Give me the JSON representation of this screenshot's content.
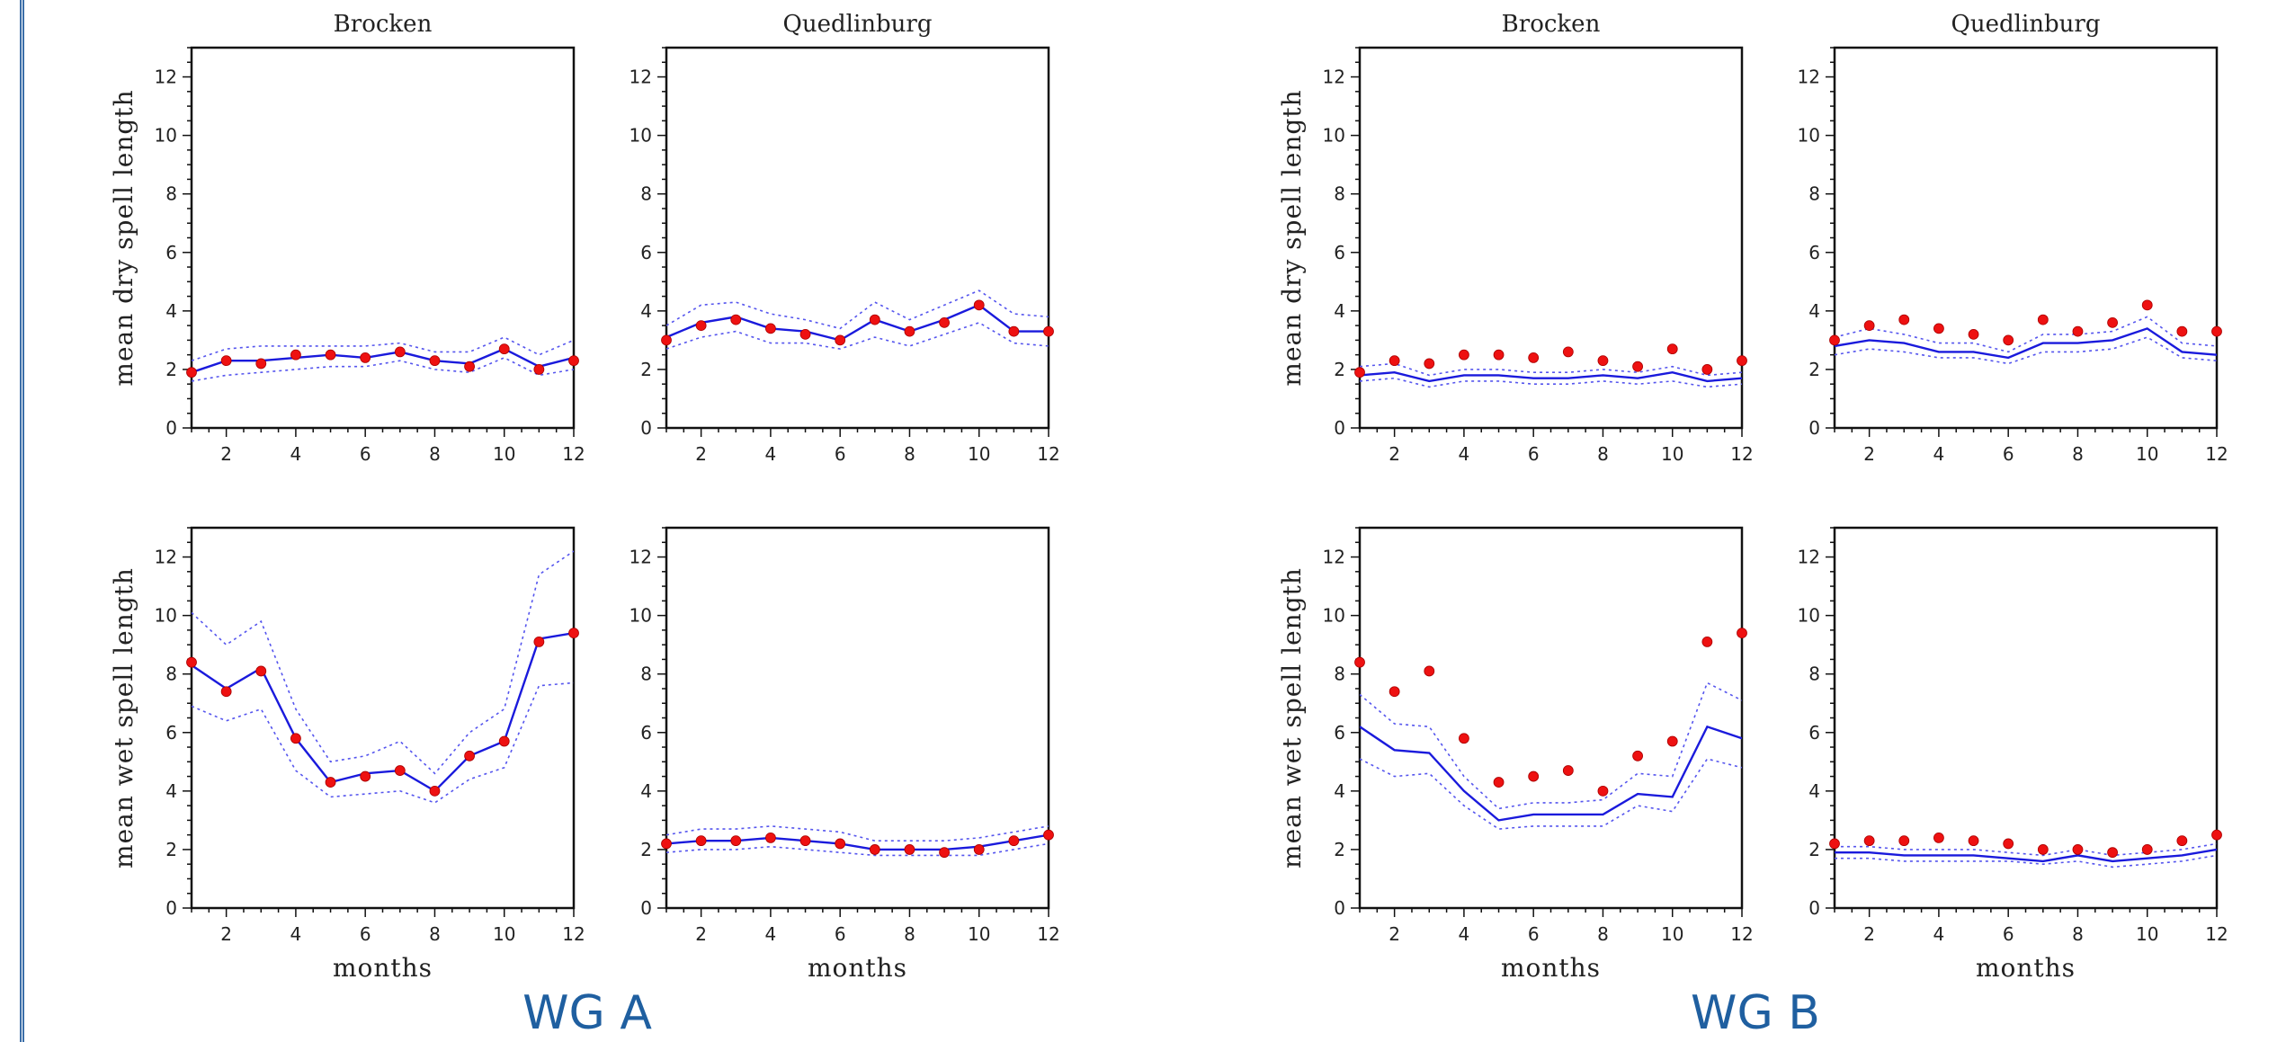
{
  "colors": {
    "model_line": "#1a1adc",
    "model_band": "#5555ee",
    "observed_points": "#ee1111",
    "axes": "#111111",
    "group_label": "#1f5fa0",
    "side_rule": "#3b6ea8"
  },
  "groups": [
    {
      "label": "WG A"
    },
    {
      "label": "WG B"
    }
  ],
  "panel_titles": [
    "Brocken",
    "Quedlinburg",
    "Brocken",
    "Quedlinburg"
  ],
  "chart_data": [
    {
      "type": "line",
      "group": "WG A",
      "title": "Brocken",
      "ylabel": "mean dry spell length",
      "xlabel": "",
      "xlim": [
        1,
        12
      ],
      "ylim": [
        0,
        13
      ],
      "xticks": [
        2,
        4,
        6,
        8,
        10,
        12
      ],
      "yticks": [
        0,
        2,
        4,
        6,
        8,
        10,
        12
      ],
      "x": [
        1,
        2,
        3,
        4,
        5,
        6,
        7,
        8,
        9,
        10,
        11,
        12
      ],
      "series": [
        {
          "role": "simulated mean",
          "style": "solid",
          "values": [
            1.9,
            2.3,
            2.3,
            2.4,
            2.5,
            2.4,
            2.6,
            2.3,
            2.2,
            2.7,
            2.1,
            2.4
          ]
        },
        {
          "role": "upper bound",
          "style": "dotted",
          "values": [
            2.3,
            2.7,
            2.8,
            2.8,
            2.8,
            2.8,
            2.9,
            2.6,
            2.6,
            3.1,
            2.5,
            3.0
          ]
        },
        {
          "role": "lower bound",
          "style": "dotted",
          "values": [
            1.6,
            1.8,
            1.9,
            2.0,
            2.1,
            2.1,
            2.3,
            2.0,
            1.9,
            2.4,
            1.8,
            2.0
          ]
        },
        {
          "role": "observed",
          "style": "points",
          "values": [
            1.9,
            2.3,
            2.2,
            2.5,
            2.5,
            2.4,
            2.6,
            2.3,
            2.1,
            2.7,
            2.0,
            2.3
          ]
        }
      ]
    },
    {
      "type": "line",
      "group": "WG A",
      "title": "Quedlinburg",
      "ylabel": "",
      "xlabel": "",
      "xlim": [
        1,
        12
      ],
      "ylim": [
        0,
        13
      ],
      "xticks": [
        2,
        4,
        6,
        8,
        10,
        12
      ],
      "yticks": [
        0,
        2,
        4,
        6,
        8,
        10,
        12
      ],
      "x": [
        1,
        2,
        3,
        4,
        5,
        6,
        7,
        8,
        9,
        10,
        11,
        12
      ],
      "series": [
        {
          "role": "simulated mean",
          "style": "solid",
          "values": [
            3.1,
            3.6,
            3.8,
            3.4,
            3.3,
            3.0,
            3.7,
            3.3,
            3.7,
            4.2,
            3.3,
            3.3
          ]
        },
        {
          "role": "upper bound",
          "style": "dotted",
          "values": [
            3.5,
            4.2,
            4.3,
            3.9,
            3.7,
            3.4,
            4.3,
            3.7,
            4.2,
            4.7,
            3.9,
            3.8
          ]
        },
        {
          "role": "lower bound",
          "style": "dotted",
          "values": [
            2.7,
            3.1,
            3.3,
            2.9,
            2.9,
            2.7,
            3.1,
            2.8,
            3.2,
            3.6,
            2.9,
            2.8
          ]
        },
        {
          "role": "observed",
          "style": "points",
          "values": [
            3.0,
            3.5,
            3.7,
            3.4,
            3.2,
            3.0,
            3.7,
            3.3,
            3.6,
            4.2,
            3.3,
            3.3
          ]
        }
      ]
    },
    {
      "type": "line",
      "group": "WG A",
      "title": "",
      "ylabel": "mean wet spell length",
      "xlabel": "months",
      "xlim": [
        1,
        12
      ],
      "ylim": [
        0,
        13
      ],
      "xticks": [
        2,
        4,
        6,
        8,
        10,
        12
      ],
      "yticks": [
        0,
        2,
        4,
        6,
        8,
        10,
        12
      ],
      "x": [
        1,
        2,
        3,
        4,
        5,
        6,
        7,
        8,
        9,
        10,
        11,
        12
      ],
      "series": [
        {
          "role": "simulated mean",
          "style": "solid",
          "values": [
            8.3,
            7.5,
            8.2,
            5.8,
            4.3,
            4.6,
            4.7,
            4.0,
            5.2,
            5.7,
            9.2,
            9.4
          ]
        },
        {
          "role": "upper bound",
          "style": "dotted",
          "values": [
            10.1,
            9.0,
            9.8,
            6.8,
            5.0,
            5.2,
            5.7,
            4.6,
            6.0,
            6.8,
            11.4,
            12.2
          ]
        },
        {
          "role": "lower bound",
          "style": "dotted",
          "values": [
            6.9,
            6.4,
            6.8,
            4.7,
            3.8,
            3.9,
            4.0,
            3.6,
            4.4,
            4.8,
            7.6,
            7.7
          ]
        },
        {
          "role": "observed",
          "style": "points",
          "values": [
            8.4,
            7.4,
            8.1,
            5.8,
            4.3,
            4.5,
            4.7,
            4.0,
            5.2,
            5.7,
            9.1,
            9.4
          ]
        }
      ]
    },
    {
      "type": "line",
      "group": "WG A",
      "title": "",
      "ylabel": "",
      "xlabel": "months",
      "xlim": [
        1,
        12
      ],
      "ylim": [
        0,
        13
      ],
      "xticks": [
        2,
        4,
        6,
        8,
        10,
        12
      ],
      "yticks": [
        0,
        2,
        4,
        6,
        8,
        10,
        12
      ],
      "x": [
        1,
        2,
        3,
        4,
        5,
        6,
        7,
        8,
        9,
        10,
        11,
        12
      ],
      "series": [
        {
          "role": "simulated mean",
          "style": "solid",
          "values": [
            2.2,
            2.3,
            2.3,
            2.4,
            2.3,
            2.2,
            2.0,
            2.0,
            2.0,
            2.1,
            2.3,
            2.5
          ]
        },
        {
          "role": "upper bound",
          "style": "dotted",
          "values": [
            2.5,
            2.7,
            2.7,
            2.8,
            2.7,
            2.6,
            2.3,
            2.3,
            2.3,
            2.4,
            2.6,
            2.8
          ]
        },
        {
          "role": "lower bound",
          "style": "dotted",
          "values": [
            1.9,
            2.0,
            2.0,
            2.1,
            2.0,
            1.9,
            1.8,
            1.8,
            1.8,
            1.8,
            2.0,
            2.2
          ]
        },
        {
          "role": "observed",
          "style": "points",
          "values": [
            2.2,
            2.3,
            2.3,
            2.4,
            2.3,
            2.2,
            2.0,
            2.0,
            1.9,
            2.0,
            2.3,
            2.5
          ]
        }
      ]
    },
    {
      "type": "line",
      "group": "WG B",
      "title": "Brocken",
      "ylabel": "mean dry spell length",
      "xlabel": "",
      "xlim": [
        1,
        12
      ],
      "ylim": [
        0,
        13
      ],
      "xticks": [
        2,
        4,
        6,
        8,
        10,
        12
      ],
      "yticks": [
        0,
        2,
        4,
        6,
        8,
        10,
        12
      ],
      "x": [
        1,
        2,
        3,
        4,
        5,
        6,
        7,
        8,
        9,
        10,
        11,
        12
      ],
      "series": [
        {
          "role": "simulated mean",
          "style": "solid",
          "values": [
            1.8,
            1.9,
            1.6,
            1.8,
            1.8,
            1.7,
            1.7,
            1.8,
            1.7,
            1.9,
            1.6,
            1.7
          ]
        },
        {
          "role": "upper bound",
          "style": "dotted",
          "values": [
            2.1,
            2.2,
            1.8,
            2.0,
            2.0,
            1.9,
            1.9,
            2.0,
            1.9,
            2.1,
            1.8,
            1.9
          ]
        },
        {
          "role": "lower bound",
          "style": "dotted",
          "values": [
            1.6,
            1.7,
            1.4,
            1.6,
            1.6,
            1.5,
            1.5,
            1.6,
            1.5,
            1.6,
            1.4,
            1.5
          ]
        },
        {
          "role": "observed",
          "style": "points",
          "values": [
            1.9,
            2.3,
            2.2,
            2.5,
            2.5,
            2.4,
            2.6,
            2.3,
            2.1,
            2.7,
            2.0,
            2.3
          ]
        }
      ]
    },
    {
      "type": "line",
      "group": "WG B",
      "title": "Quedlinburg",
      "ylabel": "",
      "xlabel": "",
      "xlim": [
        1,
        12
      ],
      "ylim": [
        0,
        13
      ],
      "xticks": [
        2,
        4,
        6,
        8,
        10,
        12
      ],
      "yticks": [
        0,
        2,
        4,
        6,
        8,
        10,
        12
      ],
      "x": [
        1,
        2,
        3,
        4,
        5,
        6,
        7,
        8,
        9,
        10,
        11,
        12
      ],
      "series": [
        {
          "role": "simulated mean",
          "style": "solid",
          "values": [
            2.8,
            3.0,
            2.9,
            2.6,
            2.6,
            2.4,
            2.9,
            2.9,
            3.0,
            3.4,
            2.6,
            2.5
          ]
        },
        {
          "role": "upper bound",
          "style": "dotted",
          "values": [
            3.1,
            3.4,
            3.2,
            2.9,
            2.9,
            2.6,
            3.2,
            3.2,
            3.3,
            3.8,
            2.9,
            2.8
          ]
        },
        {
          "role": "lower bound",
          "style": "dotted",
          "values": [
            2.5,
            2.7,
            2.6,
            2.4,
            2.4,
            2.2,
            2.6,
            2.6,
            2.7,
            3.1,
            2.4,
            2.3
          ]
        },
        {
          "role": "observed",
          "style": "points",
          "values": [
            3.0,
            3.5,
            3.7,
            3.4,
            3.2,
            3.0,
            3.7,
            3.3,
            3.6,
            4.2,
            3.3,
            3.3
          ]
        }
      ]
    },
    {
      "type": "line",
      "group": "WG B",
      "title": "",
      "ylabel": "mean wet spell length",
      "xlabel": "months",
      "xlim": [
        1,
        12
      ],
      "ylim": [
        0,
        13
      ],
      "xticks": [
        2,
        4,
        6,
        8,
        10,
        12
      ],
      "yticks": [
        0,
        2,
        4,
        6,
        8,
        10,
        12
      ],
      "x": [
        1,
        2,
        3,
        4,
        5,
        6,
        7,
        8,
        9,
        10,
        11,
        12
      ],
      "series": [
        {
          "role": "simulated mean",
          "style": "solid",
          "values": [
            6.2,
            5.4,
            5.3,
            4.0,
            3.0,
            3.2,
            3.2,
            3.2,
            3.9,
            3.8,
            6.2,
            5.8
          ]
        },
        {
          "role": "upper bound",
          "style": "dotted",
          "values": [
            7.3,
            6.3,
            6.2,
            4.5,
            3.4,
            3.6,
            3.6,
            3.7,
            4.6,
            4.5,
            7.7,
            7.1
          ]
        },
        {
          "role": "lower bound",
          "style": "dotted",
          "values": [
            5.1,
            4.5,
            4.6,
            3.5,
            2.7,
            2.8,
            2.8,
            2.8,
            3.5,
            3.3,
            5.1,
            4.8
          ]
        },
        {
          "role": "observed",
          "style": "points",
          "values": [
            8.4,
            7.4,
            8.1,
            5.8,
            4.3,
            4.5,
            4.7,
            4.0,
            5.2,
            5.7,
            9.1,
            9.4
          ]
        }
      ]
    },
    {
      "type": "line",
      "group": "WG B",
      "title": "",
      "ylabel": "",
      "xlabel": "months",
      "xlim": [
        1,
        12
      ],
      "ylim": [
        0,
        13
      ],
      "xticks": [
        2,
        4,
        6,
        8,
        10,
        12
      ],
      "yticks": [
        0,
        2,
        4,
        6,
        8,
        10,
        12
      ],
      "x": [
        1,
        2,
        3,
        4,
        5,
        6,
        7,
        8,
        9,
        10,
        11,
        12
      ],
      "series": [
        {
          "role": "simulated mean",
          "style": "solid",
          "values": [
            1.9,
            1.9,
            1.8,
            1.8,
            1.8,
            1.7,
            1.6,
            1.8,
            1.6,
            1.7,
            1.8,
            2.0
          ]
        },
        {
          "role": "upper bound",
          "style": "dotted",
          "values": [
            2.1,
            2.1,
            2.0,
            2.0,
            2.0,
            1.9,
            1.8,
            2.0,
            1.8,
            1.9,
            2.0,
            2.2
          ]
        },
        {
          "role": "lower bound",
          "style": "dotted",
          "values": [
            1.7,
            1.7,
            1.6,
            1.6,
            1.6,
            1.6,
            1.5,
            1.6,
            1.4,
            1.5,
            1.6,
            1.8
          ]
        },
        {
          "role": "observed",
          "style": "points",
          "values": [
            2.2,
            2.3,
            2.3,
            2.4,
            2.3,
            2.2,
            2.0,
            2.0,
            1.9,
            2.0,
            2.3,
            2.5
          ]
        }
      ]
    }
  ]
}
